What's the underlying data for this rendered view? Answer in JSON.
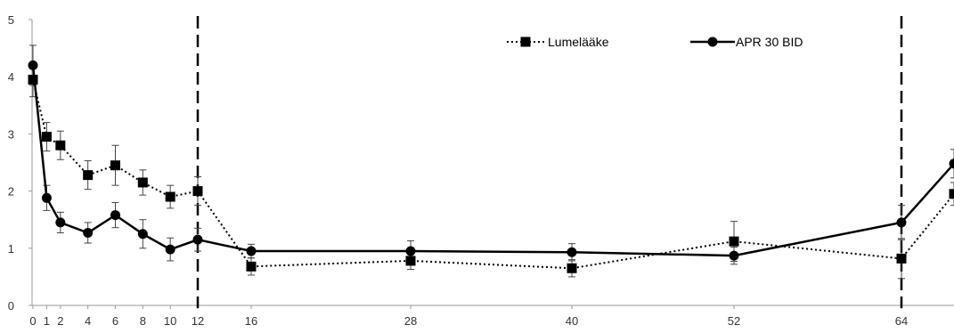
{
  "chart_data": {
    "type": "line",
    "title": "",
    "xlabel": "",
    "ylabel": "",
    "ylim": [
      0,
      5
    ],
    "yticks": [
      0,
      1,
      2,
      3,
      4,
      5
    ],
    "xticks": [
      0,
      1,
      2,
      4,
      6,
      8,
      10,
      12,
      16,
      28,
      40,
      52,
      64
    ],
    "vlines": [
      12,
      64
    ],
    "grid": false,
    "legend_position": "top-right",
    "series": [
      {
        "name": "Lumelääke",
        "style": "dotted",
        "marker": "square",
        "color": "#000000",
        "x": [
          0,
          1,
          2,
          4,
          6,
          8,
          10,
          12,
          16,
          28,
          40,
          52,
          64,
          68
        ],
        "y": [
          3.95,
          2.95,
          2.8,
          2.28,
          2.45,
          2.15,
          1.9,
          2.0,
          0.68,
          0.78,
          0.65,
          1.12,
          0.82,
          1.95
        ],
        "err": [
          0.3,
          0.25,
          0.25,
          0.25,
          0.35,
          0.22,
          0.2,
          0.25,
          0.15,
          0.15,
          0.15,
          0.35,
          0.35,
          0.2
        ]
      },
      {
        "name": "APR 30 BID",
        "style": "solid",
        "marker": "circle",
        "color": "#000000",
        "x": [
          0,
          1,
          2,
          4,
          6,
          8,
          10,
          12,
          16,
          28,
          40,
          52,
          64,
          68
        ],
        "y": [
          4.2,
          1.88,
          1.45,
          1.27,
          1.58,
          1.25,
          0.98,
          1.15,
          0.95,
          0.95,
          0.93,
          0.87,
          1.45,
          2.48
        ],
        "err": [
          0.35,
          0.22,
          0.18,
          0.18,
          0.22,
          0.25,
          0.2,
          0.2,
          0.12,
          0.18,
          0.15,
          0.15,
          0.3,
          0.25
        ]
      }
    ]
  }
}
